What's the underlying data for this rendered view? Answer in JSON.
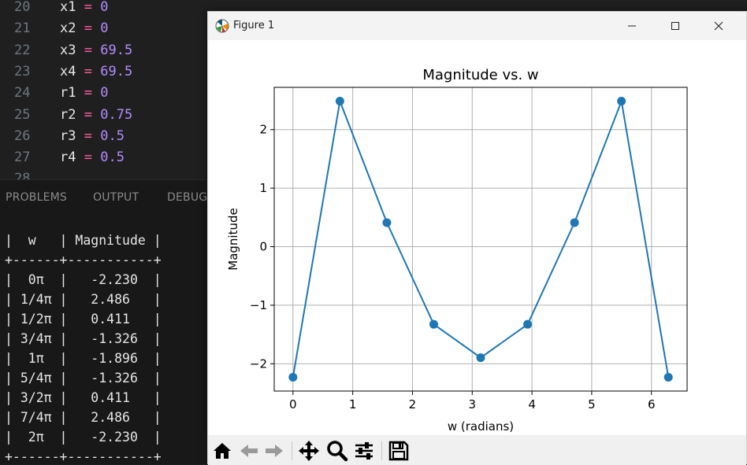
{
  "editor": {
    "lines": [
      {
        "num": "20",
        "var": "x1",
        "op": "=",
        "val": "0"
      },
      {
        "num": "21",
        "var": "x2",
        "op": "=",
        "val": "0"
      },
      {
        "num": "22",
        "var": "x3",
        "op": "=",
        "val": "69.5"
      },
      {
        "num": "23",
        "var": "x4",
        "op": "=",
        "val": "69.5"
      },
      {
        "num": "24",
        "var": "r1",
        "op": "=",
        "val": "0"
      },
      {
        "num": "25",
        "var": "r2",
        "op": "=",
        "val": "0.75"
      },
      {
        "num": "26",
        "var": "r3",
        "op": "=",
        "val": "0.5"
      },
      {
        "num": "27",
        "var": "r4",
        "op": "=",
        "val": "0.5"
      },
      {
        "num": "28",
        "var": "",
        "op": "",
        "val": ""
      }
    ]
  },
  "panel": {
    "tabs": [
      "PROBLEMS",
      "OUTPUT",
      "DEBUG"
    ]
  },
  "terminal": {
    "lines": [
      "|  w   | Magnitude |",
      "+------+-----------+",
      "|  0π  |   -2.230  |",
      "| 1/4π |   2.486   |",
      "| 1/2π |   0.411   |",
      "| 3/4π |   -1.326  |",
      "|  1π  |   -1.896  |",
      "| 5/4π |   -1.326  |",
      "| 3/2π |   0.411   |",
      "| 7/4π |   2.486   |",
      "|  2π  |   -2.230  |",
      "+------+-----------+"
    ]
  },
  "figure_window": {
    "title": "Figure 1",
    "controls": [
      "minimize",
      "maximize",
      "close"
    ],
    "toolbar_icons": [
      "home-icon",
      "back-arrow-icon",
      "forward-arrow-icon",
      "pan-icon",
      "zoom-icon",
      "configure-subplots-icon",
      "save-icon"
    ]
  },
  "chart_data": {
    "type": "line",
    "title": "Magnitude vs. w",
    "xlabel": "w (radians)",
    "ylabel": "Magnitude",
    "x": [
      0,
      0.7854,
      1.5708,
      2.3562,
      3.1416,
      3.927,
      4.7124,
      5.4978,
      6.2832
    ],
    "series": [
      {
        "values": [
          -2.23,
          2.486,
          0.411,
          -1.326,
          -1.896,
          -1.326,
          0.411,
          2.486,
          -2.23
        ],
        "color": "#1f77b4",
        "marker": "circle"
      }
    ],
    "xlim": [
      -0.314,
      6.597
    ],
    "ylim": [
      -2.466,
      2.722
    ],
    "xticks": [
      0,
      1,
      2,
      3,
      4,
      5,
      6
    ],
    "yticks": [
      -2,
      -1,
      0,
      1,
      2
    ],
    "ytick_labels": [
      "−2",
      "−1",
      "0",
      "1",
      "2"
    ],
    "grid": true
  }
}
